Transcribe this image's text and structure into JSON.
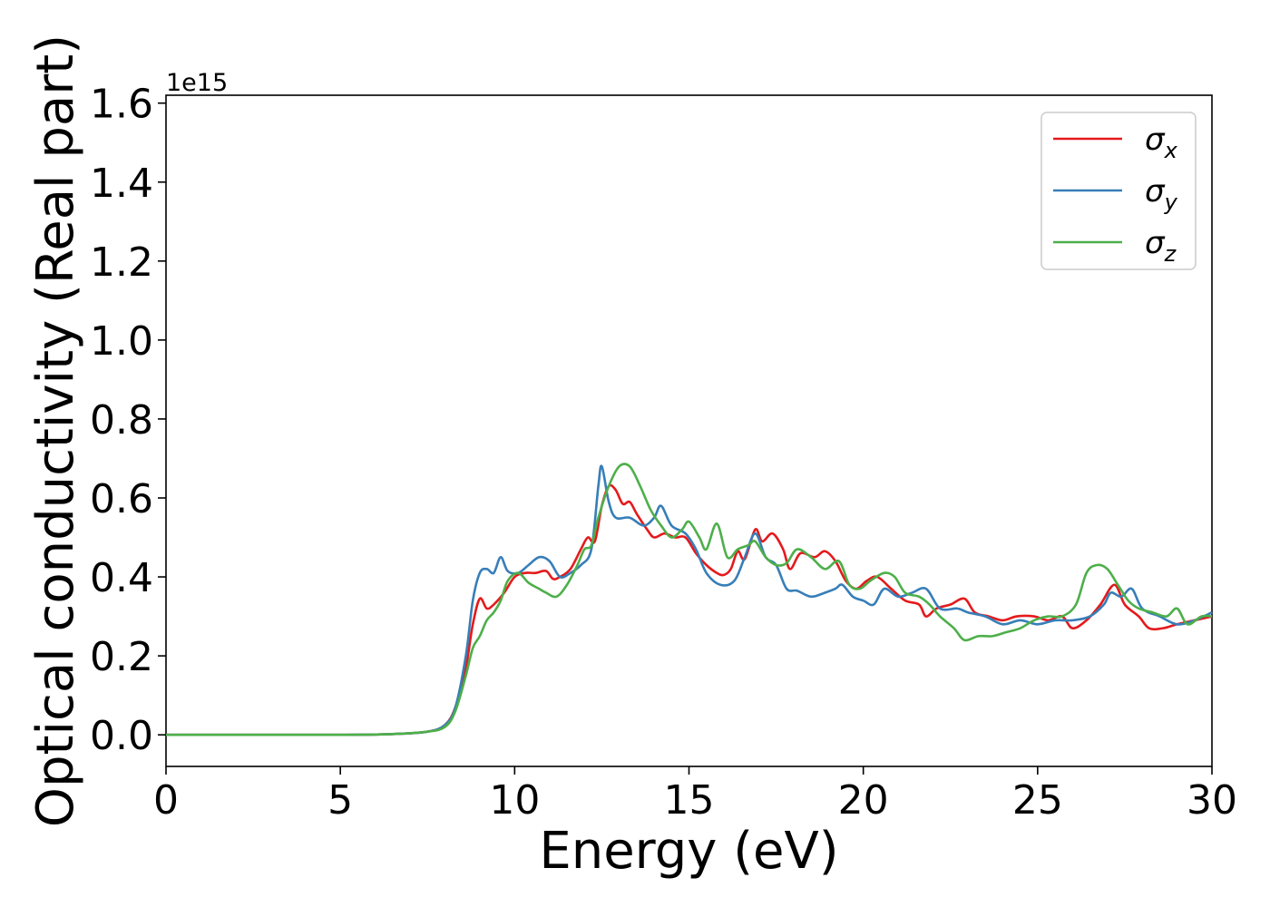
{
  "chart_data": {
    "type": "line",
    "title": "",
    "xlabel": "Energy (eV)",
    "ylabel": "Optical conductivity (Real part)",
    "y_offset_text": "1e15",
    "xlim": [
      0,
      30
    ],
    "ylim": [
      -0.08,
      1.62
    ],
    "x_ticks": [
      0,
      5,
      10,
      15,
      20,
      25,
      30
    ],
    "x_tick_labels": [
      "0",
      "5",
      "10",
      "15",
      "20",
      "25",
      "30"
    ],
    "y_ticks": [
      0.0,
      0.2,
      0.4,
      0.6,
      0.8,
      1.0,
      1.2,
      1.4,
      1.6
    ],
    "y_tick_labels": [
      "0.0",
      "0.2",
      "0.4",
      "0.6",
      "0.8",
      "1.0",
      "1.2",
      "1.4",
      "1.6"
    ],
    "grid": false,
    "legend_position": "top-right",
    "series": [
      {
        "name": "σ",
        "subscript": "x",
        "color": "#e41a1c",
        "points": [
          [
            0,
            0.0
          ],
          [
            5,
            0.0
          ],
          [
            6.5,
            0.002
          ],
          [
            7.5,
            0.008
          ],
          [
            8.0,
            0.025
          ],
          [
            8.3,
            0.07
          ],
          [
            8.6,
            0.17
          ],
          [
            8.8,
            0.28
          ],
          [
            9.0,
            0.345
          ],
          [
            9.2,
            0.32
          ],
          [
            9.4,
            0.33
          ],
          [
            9.7,
            0.36
          ],
          [
            10.0,
            0.4
          ],
          [
            10.3,
            0.41
          ],
          [
            10.6,
            0.41
          ],
          [
            10.9,
            0.415
          ],
          [
            11.1,
            0.395
          ],
          [
            11.3,
            0.4
          ],
          [
            11.6,
            0.42
          ],
          [
            11.9,
            0.47
          ],
          [
            12.1,
            0.5
          ],
          [
            12.3,
            0.49
          ],
          [
            12.5,
            0.58
          ],
          [
            12.7,
            0.63
          ],
          [
            12.9,
            0.62
          ],
          [
            13.1,
            0.585
          ],
          [
            13.3,
            0.59
          ],
          [
            13.5,
            0.56
          ],
          [
            13.8,
            0.52
          ],
          [
            14.0,
            0.5
          ],
          [
            14.3,
            0.51
          ],
          [
            14.6,
            0.5
          ],
          [
            14.9,
            0.5
          ],
          [
            15.2,
            0.46
          ],
          [
            15.5,
            0.43
          ],
          [
            15.8,
            0.41
          ],
          [
            16.0,
            0.405
          ],
          [
            16.2,
            0.42
          ],
          [
            16.4,
            0.465
          ],
          [
            16.6,
            0.445
          ],
          [
            16.9,
            0.52
          ],
          [
            17.1,
            0.49
          ],
          [
            17.4,
            0.51
          ],
          [
            17.7,
            0.47
          ],
          [
            17.9,
            0.42
          ],
          [
            18.2,
            0.46
          ],
          [
            18.6,
            0.45
          ],
          [
            18.9,
            0.465
          ],
          [
            19.2,
            0.44
          ],
          [
            19.5,
            0.39
          ],
          [
            19.8,
            0.37
          ],
          [
            20.1,
            0.39
          ],
          [
            20.4,
            0.4
          ],
          [
            20.8,
            0.37
          ],
          [
            21.2,
            0.34
          ],
          [
            21.6,
            0.33
          ],
          [
            21.8,
            0.3
          ],
          [
            22.1,
            0.32
          ],
          [
            22.5,
            0.33
          ],
          [
            22.9,
            0.345
          ],
          [
            23.2,
            0.31
          ],
          [
            23.6,
            0.3
          ],
          [
            24.0,
            0.29
          ],
          [
            24.4,
            0.3
          ],
          [
            24.9,
            0.3
          ],
          [
            25.3,
            0.29
          ],
          [
            25.7,
            0.3
          ],
          [
            26.0,
            0.27
          ],
          [
            26.4,
            0.29
          ],
          [
            26.8,
            0.33
          ],
          [
            27.2,
            0.38
          ],
          [
            27.5,
            0.33
          ],
          [
            27.9,
            0.3
          ],
          [
            28.2,
            0.27
          ],
          [
            28.6,
            0.27
          ],
          [
            29.0,
            0.28
          ],
          [
            29.5,
            0.29
          ],
          [
            30.0,
            0.3
          ]
        ]
      },
      {
        "name": "σ",
        "subscript": "y",
        "color": "#377eb8",
        "points": [
          [
            0,
            0.0
          ],
          [
            5,
            0.0
          ],
          [
            6.5,
            0.002
          ],
          [
            7.5,
            0.008
          ],
          [
            8.0,
            0.025
          ],
          [
            8.3,
            0.07
          ],
          [
            8.6,
            0.2
          ],
          [
            8.8,
            0.34
          ],
          [
            9.0,
            0.41
          ],
          [
            9.2,
            0.42
          ],
          [
            9.4,
            0.41
          ],
          [
            9.6,
            0.45
          ],
          [
            9.8,
            0.415
          ],
          [
            10.1,
            0.41
          ],
          [
            10.4,
            0.43
          ],
          [
            10.7,
            0.45
          ],
          [
            11.0,
            0.44
          ],
          [
            11.3,
            0.4
          ],
          [
            11.6,
            0.41
          ],
          [
            11.9,
            0.43
          ],
          [
            12.2,
            0.47
          ],
          [
            12.4,
            0.63
          ],
          [
            12.5,
            0.68
          ],
          [
            12.7,
            0.59
          ],
          [
            12.9,
            0.55
          ],
          [
            13.3,
            0.55
          ],
          [
            13.7,
            0.53
          ],
          [
            14.0,
            0.55
          ],
          [
            14.2,
            0.58
          ],
          [
            14.5,
            0.53
          ],
          [
            14.9,
            0.51
          ],
          [
            15.2,
            0.47
          ],
          [
            15.5,
            0.41
          ],
          [
            15.9,
            0.38
          ],
          [
            16.3,
            0.39
          ],
          [
            16.6,
            0.45
          ],
          [
            16.9,
            0.51
          ],
          [
            17.2,
            0.45
          ],
          [
            17.5,
            0.43
          ],
          [
            17.8,
            0.37
          ],
          [
            18.1,
            0.365
          ],
          [
            18.5,
            0.35
          ],
          [
            18.9,
            0.36
          ],
          [
            19.2,
            0.37
          ],
          [
            19.4,
            0.38
          ],
          [
            19.7,
            0.35
          ],
          [
            20.0,
            0.34
          ],
          [
            20.3,
            0.33
          ],
          [
            20.6,
            0.37
          ],
          [
            21.0,
            0.35
          ],
          [
            21.4,
            0.36
          ],
          [
            21.8,
            0.37
          ],
          [
            22.2,
            0.32
          ],
          [
            22.7,
            0.32
          ],
          [
            23.0,
            0.31
          ],
          [
            23.5,
            0.3
          ],
          [
            24.0,
            0.28
          ],
          [
            24.5,
            0.29
          ],
          [
            25.0,
            0.28
          ],
          [
            25.5,
            0.29
          ],
          [
            26.0,
            0.29
          ],
          [
            26.5,
            0.3
          ],
          [
            26.9,
            0.33
          ],
          [
            27.1,
            0.36
          ],
          [
            27.4,
            0.35
          ],
          [
            27.7,
            0.37
          ],
          [
            28.0,
            0.32
          ],
          [
            28.5,
            0.3
          ],
          [
            29.0,
            0.28
          ],
          [
            29.5,
            0.29
          ],
          [
            30.0,
            0.31
          ]
        ]
      },
      {
        "name": "σ",
        "subscript": "z",
        "color": "#4daf4a",
        "points": [
          [
            0,
            0.0
          ],
          [
            5,
            0.0
          ],
          [
            6.5,
            0.002
          ],
          [
            7.5,
            0.008
          ],
          [
            8.0,
            0.02
          ],
          [
            8.3,
            0.06
          ],
          [
            8.6,
            0.15
          ],
          [
            8.8,
            0.22
          ],
          [
            9.0,
            0.25
          ],
          [
            9.2,
            0.29
          ],
          [
            9.4,
            0.31
          ],
          [
            9.6,
            0.34
          ],
          [
            9.8,
            0.39
          ],
          [
            10.1,
            0.41
          ],
          [
            10.4,
            0.385
          ],
          [
            10.7,
            0.37
          ],
          [
            10.9,
            0.36
          ],
          [
            11.2,
            0.35
          ],
          [
            11.5,
            0.38
          ],
          [
            11.8,
            0.43
          ],
          [
            12.0,
            0.47
          ],
          [
            12.2,
            0.48
          ],
          [
            12.4,
            0.55
          ],
          [
            12.7,
            0.63
          ],
          [
            13.0,
            0.68
          ],
          [
            13.3,
            0.68
          ],
          [
            13.6,
            0.63
          ],
          [
            13.9,
            0.57
          ],
          [
            14.2,
            0.53
          ],
          [
            14.5,
            0.5
          ],
          [
            14.8,
            0.52
          ],
          [
            15.0,
            0.54
          ],
          [
            15.3,
            0.5
          ],
          [
            15.5,
            0.47
          ],
          [
            15.8,
            0.535
          ],
          [
            16.1,
            0.45
          ],
          [
            16.4,
            0.47
          ],
          [
            16.7,
            0.48
          ],
          [
            16.9,
            0.49
          ],
          [
            17.2,
            0.45
          ],
          [
            17.5,
            0.43
          ],
          [
            17.8,
            0.435
          ],
          [
            18.1,
            0.47
          ],
          [
            18.5,
            0.45
          ],
          [
            18.9,
            0.42
          ],
          [
            19.3,
            0.44
          ],
          [
            19.6,
            0.38
          ],
          [
            19.9,
            0.37
          ],
          [
            20.2,
            0.39
          ],
          [
            20.6,
            0.41
          ],
          [
            20.9,
            0.4
          ],
          [
            21.2,
            0.36
          ],
          [
            21.6,
            0.35
          ],
          [
            21.9,
            0.33
          ],
          [
            22.2,
            0.3
          ],
          [
            22.6,
            0.27
          ],
          [
            22.9,
            0.24
          ],
          [
            23.3,
            0.25
          ],
          [
            23.7,
            0.25
          ],
          [
            24.1,
            0.26
          ],
          [
            24.5,
            0.27
          ],
          [
            24.9,
            0.29
          ],
          [
            25.3,
            0.3
          ],
          [
            25.7,
            0.3
          ],
          [
            26.1,
            0.33
          ],
          [
            26.4,
            0.41
          ],
          [
            26.7,
            0.43
          ],
          [
            27.0,
            0.42
          ],
          [
            27.3,
            0.38
          ],
          [
            27.6,
            0.34
          ],
          [
            27.9,
            0.32
          ],
          [
            28.3,
            0.31
          ],
          [
            28.7,
            0.3
          ],
          [
            29.0,
            0.32
          ],
          [
            29.3,
            0.28
          ],
          [
            29.7,
            0.3
          ],
          [
            30.0,
            0.3
          ]
        ]
      }
    ]
  }
}
